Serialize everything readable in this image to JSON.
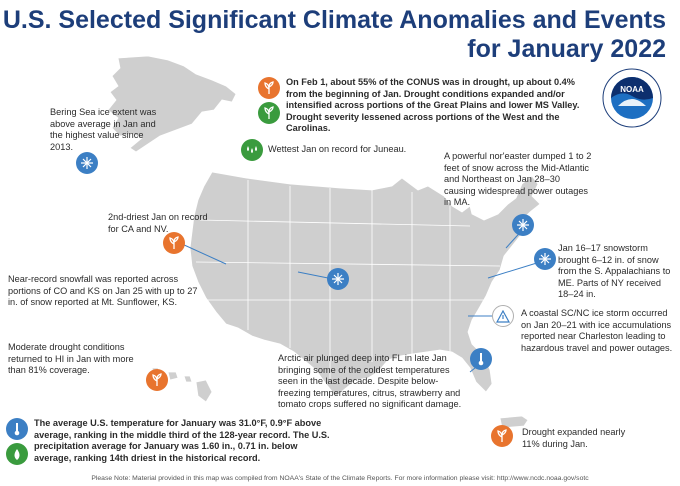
{
  "title": {
    "line1": "U.S. Selected Significant Climate Anomalies and Events",
    "line2": "for January 2022"
  },
  "logo": {
    "text": "NOAA",
    "ring_top": "NATIONAL OCEANIC AND ATMOSPHERIC ADMINISTRATION",
    "ring_bottom": "U.S. DEPARTMENT OF COMMERCE"
  },
  "annotations": {
    "drought_conus": "On Feb 1, about 55% of the CONUS was in drought, up about 0.4% from the beginning of Jan. Drought conditions expanded and/or intensified across portions of the Great Plains and lower MS Valley. Drought severity lessened across portions of the West and the Carolinas.",
    "bering": "Bering Sea ice extent was above average in Jan and the highest value since 2013.",
    "juneau": "Wettest Jan on record for Juneau.",
    "noreaster": "A powerful nor'easter dumped 1 to 2 feet of snow across the Mid-Atlantic and Northeast on Jan 28–30 causing widespread power outages in MA.",
    "ca_nv": "2nd-driest Jan on record for CA and NV.",
    "snowstorm": "Jan 16–17 snowstorm brought 6–12 in. of snow from the S. Appalachians to ME. Parts of NY received 18–24 in.",
    "co_ks": "Near-record snowfall was reported across portions of CO and KS on Jan 25 with up to 27 in. of snow reported at Mt. Sunflower, KS.",
    "ice_storm": "A coastal SC/NC ice storm occurred on Jan 20–21 with ice accumulations reported near Charleston leading to hazardous travel and power outages.",
    "hawaii": "Moderate drought conditions returned to HI in Jan with more than 81% coverage.",
    "florida": "Arctic air plunged deep into FL in late Jan bringing some of the coldest temperatures seen in the last decade. Despite below-freezing temperatures, citrus, strawberry and tomato crops suffered no significant damage.",
    "summary": "The average U.S. temperature for January was 31.0°F, 0.9°F above average, ranking in the middle third of the 128-year record. The U.S. precipitation average for January was 1.60 in., 0.71 in. below average, ranking 14th driest in the historical record.",
    "puerto_rico": "Drought expanded nearly 11% during Jan."
  },
  "footer": "Please Note: Material provided in this map was compiled from NOAA's State of the Climate Reports. For more information please visit: http://www.ncdc.noaa.gov/sotc",
  "colors": {
    "title": "#1d3e7a",
    "drought": "#e8742e",
    "wet": "#3a9b3e",
    "snow": "#3c7fc4",
    "land": "#cfcfcf",
    "leader": "#3c7fc4"
  },
  "icons": {
    "drought": "drought-plant-icon",
    "wet": "rain-drops-icon",
    "snow": "snowflake-icon",
    "ice": "ice-storm-icon",
    "warning": "warning-triangle-icon",
    "temperature": "thermometer-icon"
  }
}
